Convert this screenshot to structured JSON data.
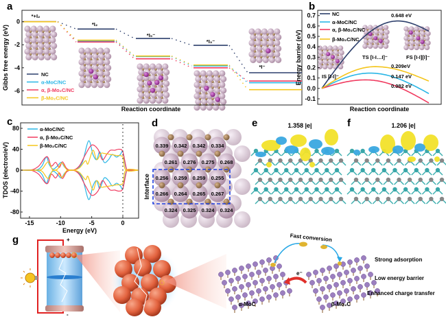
{
  "colors": {
    "NC": "#2c3e6b",
    "alpha": "#29b6e6",
    "alphabeta": "#f03a5f",
    "beta": "#f4c51b",
    "mo": "#c8a6c4",
    "c": "#9b7b56",
    "iodine": "#a0309a"
  },
  "panels": {
    "a": "a",
    "b": "b",
    "c": "c",
    "d": "d",
    "e": "e",
    "f": "f",
    "g": "g"
  },
  "chart_data": [
    {
      "type": "line",
      "panel": "a",
      "ylabel": "Gibbs free energy (eV)",
      "xlabel": "Reaction coordinate",
      "yticks": [
        "0",
        "-2",
        "-4",
        "-6"
      ],
      "ylim": [
        -7.2,
        0.6
      ],
      "states": [
        "*+I₂",
        "*I₂",
        "*I₅⁻",
        "*I₃⁻",
        "*I⁻"
      ],
      "series": [
        {
          "name": "NC",
          "color": "#2c3e6b",
          "values": [
            0,
            -0.63,
            -1.45,
            -2.05,
            -4.43
          ]
        },
        {
          "name": "α-MoC/NC",
          "color": "#29b6e6",
          "values": [
            0,
            -1.68,
            -3.02,
            -3.84,
            -5.3
          ]
        },
        {
          "name": "α, β-Mo₂C/NC",
          "color": "#f03a5f",
          "values": [
            0,
            -1.76,
            -3.22,
            -4.0,
            -5.15
          ]
        },
        {
          "name": "β-Mo₂C/NC",
          "color": "#f4c51b",
          "values": [
            0,
            -1.6,
            -2.98,
            -3.76,
            -5.9
          ]
        }
      ]
    },
    {
      "type": "line",
      "panel": "b",
      "ylabel": "Energy barrier (eV)",
      "xlabel": "Reaction coordinate",
      "yticks": [
        "0.7",
        "0.6",
        "0.5",
        "0.4",
        "0.3",
        "0.2",
        "0.1",
        "0.0",
        "-0.1"
      ],
      "ylim": [
        -0.15,
        0.75
      ],
      "state_labels": {
        "IS": "IS [I-I]⁻",
        "TS": "TS [I-I…I]⁻",
        "FS": "FS [I-I][I]⁻"
      },
      "series": [
        {
          "name": "NC",
          "color": "#2c3e6b",
          "start": 0,
          "peak": 0.648,
          "peak_coordinate": 0.71,
          "end": 0.55,
          "label": "0.648 eV"
        },
        {
          "name": "α-MoC/NC",
          "color": "#29b6e6",
          "start": 0,
          "peak": 0.147,
          "peak_coordinate": 0.45,
          "end": -0.05,
          "label": "0.147 eV"
        },
        {
          "name": "α, β-Mo₂C/NC",
          "color": "#f03a5f",
          "start": 0,
          "peak": 0.082,
          "peak_coordinate": 0.41,
          "end": -0.14,
          "label": "0.082 eV"
        },
        {
          "name": "β-Mo₂C/NC",
          "color": "#f4c51b",
          "start": 0,
          "peak": 0.209,
          "peak_coordinate": 0.5,
          "end": 0.07,
          "label": "0.209eV"
        }
      ]
    },
    {
      "type": "line",
      "panel": "c",
      "ylabel": "TDOS (electron/eV)",
      "xlabel": "Energy (eV)",
      "xticks": [
        "-15",
        "-10",
        "-5",
        "0"
      ],
      "yticks": [
        "80",
        "40",
        "0",
        "-40",
        "-80"
      ],
      "xlim": [
        -16.4,
        2.5
      ],
      "ylim": [
        -88,
        88
      ],
      "fermi_level": 0,
      "spin_mirrored": true,
      "series": [
        {
          "name": "α-MoC/NC",
          "color": "#29b6e6",
          "points": [
            [
              -16.4,
              0
            ],
            [
              -14,
              0
            ],
            [
              -13,
              8
            ],
            [
              -12.3,
              25
            ],
            [
              -11.8,
              10
            ],
            [
              -11.2,
              2
            ],
            [
              -10.5,
              8
            ],
            [
              -9.9,
              15
            ],
            [
              -9.3,
              5
            ],
            [
              -8.5,
              0
            ],
            [
              -7.5,
              2
            ],
            [
              -6.5,
              15
            ],
            [
              -5.5,
              56
            ],
            [
              -4.8,
              30
            ],
            [
              -4.2,
              20
            ],
            [
              -3.7,
              35
            ],
            [
              -3,
              15
            ],
            [
              -2.3,
              20
            ],
            [
              -1.7,
              30
            ],
            [
              -1,
              25
            ],
            [
              -0.4,
              30
            ],
            [
              0,
              35
            ],
            [
              0.5,
              5
            ],
            [
              1,
              0
            ],
            [
              2.5,
              0
            ]
          ]
        },
        {
          "name": "α, β-Mo₂C/NC",
          "color": "#f03a5f",
          "points": [
            [
              -16.4,
              0
            ],
            [
              -15.5,
              0
            ],
            [
              -14.5,
              1
            ],
            [
              -13.5,
              8
            ],
            [
              -12.2,
              26
            ],
            [
              -11.5,
              8
            ],
            [
              -10.8,
              15
            ],
            [
              -10.2,
              5
            ],
            [
              -9.7,
              16
            ],
            [
              -9,
              3
            ],
            [
              -8,
              0
            ],
            [
              -7,
              8
            ],
            [
              -6,
              30
            ],
            [
              -5,
              48
            ],
            [
              -4,
              40
            ],
            [
              -3.3,
              20
            ],
            [
              -2.6,
              30
            ],
            [
              -2,
              38
            ],
            [
              -1.3,
              38
            ],
            [
              -0.6,
              40
            ],
            [
              0,
              35
            ],
            [
              0.6,
              2
            ],
            [
              1,
              0
            ],
            [
              2.5,
              0
            ]
          ]
        },
        {
          "name": "β-Mo₂C/NC",
          "color": "#f4c51b",
          "points": [
            [
              -16.4,
              0
            ],
            [
              -14,
              0
            ],
            [
              -13,
              2
            ],
            [
              -12,
              16
            ],
            [
              -11.3,
              1
            ],
            [
              -10.5,
              2
            ],
            [
              -9.8,
              14
            ],
            [
              -9,
              1
            ],
            [
              -8,
              0
            ],
            [
              -7,
              4
            ],
            [
              -6,
              18
            ],
            [
              -5.6,
              12
            ],
            [
              -4.8,
              38
            ],
            [
              -4.2,
              20
            ],
            [
              -3.5,
              32
            ],
            [
              -3,
              32
            ],
            [
              -2,
              30
            ],
            [
              -1,
              28
            ],
            [
              0,
              25
            ],
            [
              0.5,
              0
            ],
            [
              2.5,
              0
            ]
          ]
        }
      ]
    }
  ],
  "panel_d": {
    "side_label": "Interface",
    "rows": [
      [
        "0.339",
        "0.342",
        "0.342",
        "0.334"
      ],
      [
        "0.261",
        "0.276",
        "0.275",
        "0.268"
      ],
      [
        "0.256",
        "0.259",
        "0.259",
        "0.255"
      ],
      [
        "0.266",
        "0.264",
        "0.265",
        "0.267"
      ],
      [
        "0.324",
        "0.325",
        "0.324",
        "0.324"
      ]
    ]
  },
  "panel_e": {
    "title": "1.358 |e|"
  },
  "panel_f": {
    "title": "1.206 |e|"
  },
  "panel_g": {
    "plus": "+",
    "minus": "-",
    "fast_conversion": "Fast conversion",
    "electron": "e⁻",
    "alpha_label": "α-MoC",
    "beta_label": "β-Mo₂C",
    "features": [
      "Strong adsorption",
      "Low energy barrier",
      "Enhanced charge transfer"
    ]
  }
}
